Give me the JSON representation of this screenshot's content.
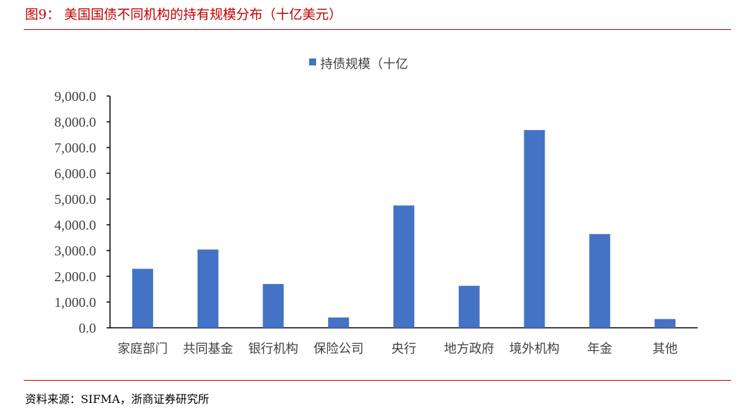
{
  "header": {
    "title": "图9：  美国国债不同机构的持有规模分布（十亿美元）"
  },
  "footer": {
    "source": "资料来源：SIFMA，浙商证券研究所"
  },
  "colors": {
    "bar": "#4472c4",
    "accent": "#c00000"
  },
  "chart_data": {
    "type": "bar",
    "title": "",
    "xlabel": "",
    "ylabel": "",
    "legend": "top-center",
    "ylim": [
      0,
      9000
    ],
    "grid": false,
    "yticks": [
      "0.0",
      "1,000.0",
      "2,000.0",
      "3,000.0",
      "4,000.0",
      "5,000.0",
      "6,000.0",
      "7,000.0",
      "8,000.0",
      "9,000.0"
    ],
    "categories": [
      "家庭部门",
      "共同基金",
      "银行机构",
      "保险公司",
      "央行",
      "地方政府",
      "境外机构",
      "年金",
      "其他"
    ],
    "series": [
      {
        "name": "持债规模（十亿",
        "values": [
          2290,
          3040,
          1700,
          400,
          4750,
          1630,
          7680,
          3640,
          340
        ]
      }
    ]
  }
}
